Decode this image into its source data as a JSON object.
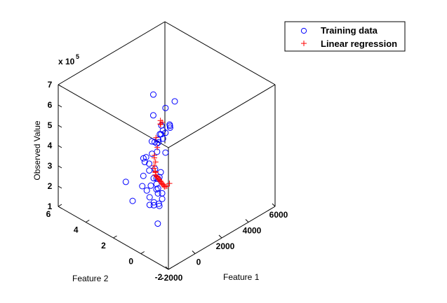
{
  "chart_data": {
    "type": "scatter",
    "subtype": "3d-scatter",
    "title": "",
    "xlabel": "Feature 1",
    "ylabel": "Feature 2",
    "zlabel": "Observed Value",
    "z_multiplier": "x 10",
    "z_exponent": "5",
    "xlim": [
      -2000,
      6000
    ],
    "ylim": [
      -2,
      6
    ],
    "zlim": [
      100000,
      700000
    ],
    "xticks": [
      "-2000",
      "0",
      "2000",
      "4000",
      "6000"
    ],
    "yticks": [
      "-2",
      "0",
      "2",
      "4",
      "6"
    ],
    "zticks": [
      "1",
      "2",
      "3",
      "4",
      "5",
      "6",
      "7"
    ],
    "grid": false,
    "box": true,
    "legend": {
      "position": "top-right",
      "entries": [
        "Training data",
        "Linear regression"
      ]
    },
    "colors": {
      "training": "#0000ff",
      "regression": "#ff0000"
    },
    "series": [
      {
        "name": "Training data",
        "marker": "circle",
        "points": [
          [
            1000,
            2.0,
            690000
          ],
          [
            400,
            0.2,
            620000
          ],
          [
            1500,
            1.6,
            620000
          ],
          [
            2400,
            1.8,
            610000
          ],
          [
            900,
            0.7,
            590000
          ],
          [
            1100,
            2.1,
            580000
          ],
          [
            1500,
            1.3,
            550000
          ],
          [
            1000,
            1.3,
            540000
          ],
          [
            1400,
            1.8,
            530000
          ],
          [
            1000,
            1.3,
            500000
          ],
          [
            1600,
            1.7,
            490000
          ],
          [
            1000,
            1.9,
            460000
          ],
          [
            1700,
            2.2,
            460000
          ],
          [
            2000,
            2.4,
            440000
          ],
          [
            1200,
            2.3,
            440000
          ],
          [
            -200,
            0.3,
            420000
          ],
          [
            800,
            1.9,
            410000
          ],
          [
            1500,
            1.6,
            400000
          ],
          [
            -300,
            0.3,
            400000
          ],
          [
            1900,
            2.5,
            400000
          ],
          [
            2200,
            2.8,
            390000
          ],
          [
            200,
            1.1,
            390000
          ],
          [
            -200,
            0.5,
            380000
          ],
          [
            -100,
            0.7,
            370000
          ],
          [
            2300,
            3.0,
            360000
          ],
          [
            1900,
            2.6,
            350000
          ],
          [
            -200,
            0.6,
            350000
          ],
          [
            200,
            1.2,
            340000
          ],
          [
            -300,
            0.4,
            340000
          ],
          [
            1100,
            2.4,
            330000
          ],
          [
            800,
            2.1,
            320000
          ],
          [
            -200,
            0.2,
            320000
          ],
          [
            1500,
            3.2,
            310000
          ],
          [
            -100,
            0.6,
            300000
          ],
          [
            1800,
            3.3,
            300000
          ],
          [
            100,
            0.9,
            300000
          ],
          [
            -300,
            0.1,
            300000
          ],
          [
            400,
            1.6,
            280000
          ],
          [
            1700,
            3.3,
            280000
          ],
          [
            200,
            1.7,
            260000
          ],
          [
            -300,
            0.7,
            260000
          ],
          [
            0,
            1.3,
            250000
          ],
          [
            -200,
            0.4,
            250000
          ],
          [
            -100,
            0.9,
            230000
          ],
          [
            -100,
            1.2,
            220000
          ],
          [
            1100,
            2.9,
            200000
          ],
          [
            1800,
            3.5,
            200000
          ],
          [
            900,
            3.9,
            190000
          ],
          [
            1100,
            1.7,
            160000
          ],
          [
            300,
            1.0,
            120000
          ],
          [
            1100,
            3.6,
            100000
          ]
        ]
      },
      {
        "name": "Linear regression",
        "marker": "plus",
        "points": [
          [
            -200,
            0.2,
            670000
          ],
          [
            0,
            0.5,
            640000
          ],
          [
            500,
            1.0,
            620000
          ],
          [
            800,
            1.3,
            580000
          ],
          [
            1200,
            2.0,
            470000
          ],
          [
            1400,
            2.1,
            410000
          ],
          [
            1700,
            2.6,
            340000
          ],
          [
            1800,
            2.7,
            320000
          ],
          [
            2100,
            2.9,
            280000
          ],
          [
            2200,
            3.1,
            250000
          ],
          [
            2300,
            3.2,
            230000
          ],
          [
            2400,
            3.2,
            210000
          ],
          [
            2500,
            3.3,
            200000
          ],
          [
            2600,
            3.4,
            190000
          ],
          [
            2700,
            3.5,
            170000
          ],
          [
            2800,
            3.5,
            160000
          ],
          [
            2900,
            3.6,
            150000
          ],
          [
            3000,
            3.6,
            140000
          ],
          [
            3100,
            3.7,
            130000
          ],
          [
            3200,
            3.7,
            120000
          ],
          [
            3300,
            3.8,
            110000
          ],
          [
            3400,
            3.8,
            100000
          ],
          [
            3500,
            3.9,
            90000
          ],
          [
            3600,
            3.9,
            80000
          ],
          [
            3700,
            4.0,
            70000
          ],
          [
            3800,
            4.0,
            60000
          ],
          [
            3900,
            4.1,
            50000
          ],
          [
            4000,
            4.1,
            40000
          ],
          [
            4100,
            4.2,
            30000
          ],
          [
            4300,
            4.3,
            20000
          ],
          [
            4500,
            4.4,
            10000
          ],
          [
            4900,
            4.6,
            0
          ]
        ]
      }
    ]
  }
}
